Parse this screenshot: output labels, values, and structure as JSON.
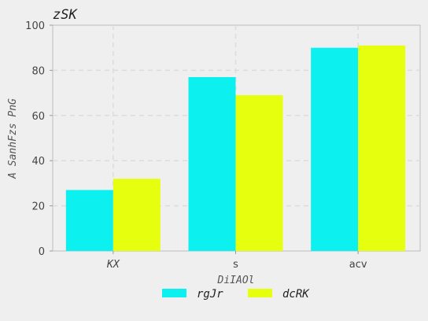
{
  "chart_data": {
    "type": "bar",
    "title": "zSK",
    "xlabel": "DiIAOl",
    "ylabel": "A SanhFzs PnG",
    "categories": [
      "KX",
      "s",
      "acv"
    ],
    "series": [
      {
        "name": "rgJr",
        "values": [
          27,
          77,
          90
        ],
        "color": "#0cf0f0"
      },
      {
        "name": "dcRK",
        "values": [
          32,
          69,
          91
        ],
        "color": "#e6ff0f"
      }
    ],
    "ylim": [
      0,
      100
    ],
    "yticks": [
      "0",
      "20",
      "40",
      "60",
      "80",
      "100"
    ],
    "grid": true,
    "legend_position": "bottom-center"
  }
}
